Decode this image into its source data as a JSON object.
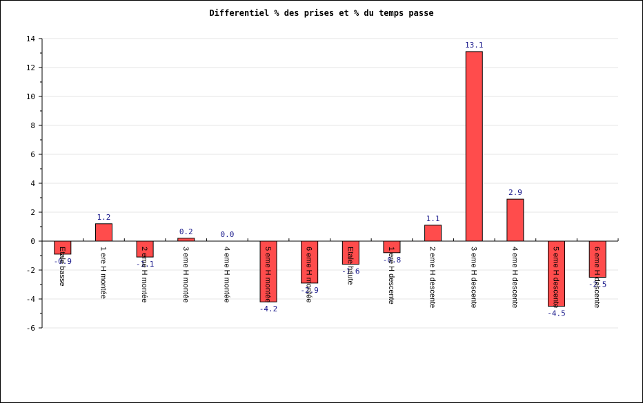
{
  "chart_data": {
    "type": "bar",
    "title": "Differentiel % des prises et % du temps passe",
    "xlabel": "",
    "ylabel": "",
    "ylim": [
      -6,
      14
    ],
    "yticks": [
      "14",
      "12",
      "10",
      "8",
      "6",
      "4",
      "2",
      "0",
      "-2",
      "-4",
      "-6"
    ],
    "categories": [
      "Etale basse",
      "1 ere H montée",
      "2 eme H montée",
      "3 eme H montée",
      "4 eme H montée",
      "5 eme H montée",
      "6 eme H montée",
      "Etale haute",
      "1 ere H descente",
      "2 eme H descente",
      "3 eme H descente",
      "4 eme H descente",
      "5 eme H descente",
      "6 eme H descente"
    ],
    "values": [
      -0.9,
      1.2,
      -1.1,
      0.2,
      0.0,
      -4.2,
      -2.9,
      -1.6,
      -0.8,
      1.1,
      13.1,
      2.9,
      -4.5,
      -2.5
    ],
    "value_labels": [
      "-0.9",
      "1.2",
      "-1.1",
      "0.2",
      "0.0",
      "-4.2",
      "-2.9",
      "-1.6",
      "-0.8",
      "1.1",
      "13.1",
      "2.9",
      "-4.5",
      "-2.5"
    ],
    "grid": true,
    "legend": "none",
    "colors": {
      "bar": "#ff4c4c",
      "bar_edge": "#000000",
      "value_label": "#1a1a8c",
      "grid": "#e6e6e6"
    }
  }
}
